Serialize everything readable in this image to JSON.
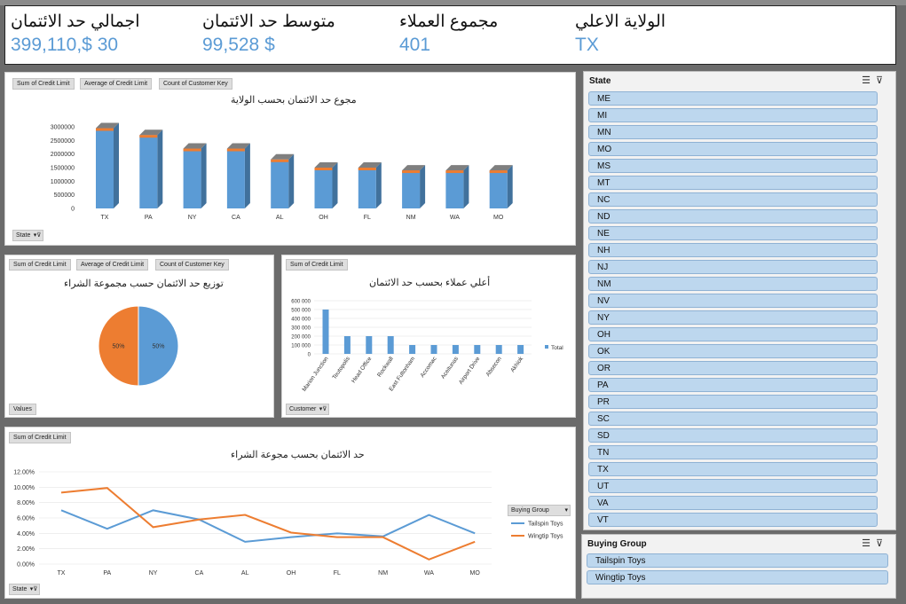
{
  "kpis": [
    {
      "title": "اجمالي حد الائتمان",
      "value": "399,110,$ 30"
    },
    {
      "title": "متوسط حد الائتمان",
      "value": "99,528 $"
    },
    {
      "title": "مجموع العملاء",
      "value": "401"
    },
    {
      "title": "الولاية الاعلي",
      "value": "TX"
    }
  ],
  "pivot_buttons": {
    "sum_credit": "Sum of Credit Limit",
    "avg_credit": "Average of Credit Limit",
    "count_key": "Count of Customer Key"
  },
  "chart1": {
    "title": "مجوع حد الائتمان بحسب الولاية",
    "filter_label": "State",
    "chart_data": {
      "type": "bar",
      "categories": [
        "TX",
        "PA",
        "NY",
        "CA",
        "AL",
        "OH",
        "FL",
        "NM",
        "WA",
        "MO"
      ],
      "values": [
        2950000,
        2700000,
        2200000,
        2200000,
        1800000,
        1500000,
        1500000,
        1400000,
        1400000,
        1400000
      ],
      "ylim": [
        0,
        3000000
      ],
      "yticks": [
        0,
        500000,
        1000000,
        1500000,
        2000000,
        2500000,
        3000000
      ],
      "colors": {
        "bar": "#5b9bd5",
        "side": "#41719c",
        "top": "#ed7d31"
      }
    }
  },
  "chart2": {
    "title": "توزيع حد الائتمان حسب مجموعة الشراء",
    "filter_label": "Values",
    "chart_data": {
      "type": "pie",
      "slices": [
        {
          "label": "50%",
          "value": 50,
          "color": "#5b9bd5"
        },
        {
          "label": "50%",
          "value": 50,
          "color": "#ed7d31"
        }
      ]
    }
  },
  "chart3": {
    "title": "أعلي  عملاء بحسب حد الائتمان",
    "filter_label": "Customer",
    "legend": "Total",
    "chart_data": {
      "type": "bar",
      "categories": [
        "Marion Junction",
        "Teutopolis",
        "Head Office",
        "Rockwall",
        "East Fultonham",
        "Accomac",
        "Aceitunas",
        "Airport Drive",
        "Absecon",
        "Akhiok"
      ],
      "values": [
        500000,
        200000,
        200000,
        200000,
        100000,
        100000,
        100000,
        100000,
        100000,
        100000
      ],
      "ylim": [
        0,
        600000
      ],
      "yticks": [
        0,
        100000,
        200000,
        300000,
        400000,
        500000,
        600000
      ],
      "color": "#5b9bd5"
    }
  },
  "chart4": {
    "title": "حد الائتمان بحسب مجوعة الشراء",
    "filter_label": "State",
    "legend_title": "Buying Group",
    "chart_data": {
      "type": "line",
      "categories": [
        "TX",
        "PA",
        "NY",
        "CA",
        "AL",
        "OH",
        "FL",
        "NM",
        "WA",
        "MO"
      ],
      "series": [
        {
          "name": "Tailspin Toys",
          "color": "#5b9bd5",
          "values": [
            7.0,
            4.6,
            7.0,
            5.8,
            2.9,
            3.5,
            4.0,
            3.6,
            6.4,
            4.0
          ]
        },
        {
          "name": "Wingtip Toys",
          "color": "#ed7d31",
          "values": [
            9.3,
            9.9,
            4.8,
            5.8,
            6.4,
            4.1,
            3.5,
            3.5,
            0.6,
            2.9
          ]
        }
      ],
      "ylim": [
        0,
        12
      ],
      "yticks": [
        "0.00%",
        "2.00%",
        "4.00%",
        "6.00%",
        "8.00%",
        "10.00%",
        "12.00%"
      ]
    }
  },
  "state_slicer": {
    "header": "State",
    "items": [
      "ME",
      "MI",
      "MN",
      "MO",
      "MS",
      "MT",
      "NC",
      "ND",
      "NE",
      "NH",
      "NJ",
      "NM",
      "NV",
      "NY",
      "OH",
      "OK",
      "OR",
      "PA",
      "PR",
      "SC",
      "SD",
      "TN",
      "TX",
      "UT",
      "VA",
      "VT"
    ]
  },
  "buying_slicer": {
    "header": "Buying Group",
    "items": [
      "Tailspin Toys",
      "Wingtip Toys"
    ]
  }
}
